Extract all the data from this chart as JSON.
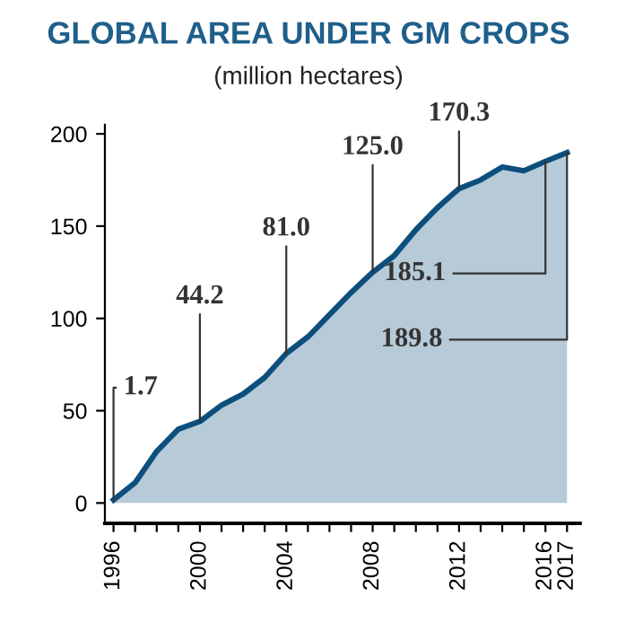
{
  "chart_data": {
    "type": "area",
    "title": "GLOBAL AREA UNDER GM CROPS",
    "subtitle": "(million hectares)",
    "x": [
      1996,
      1997,
      1998,
      1999,
      2000,
      2001,
      2002,
      2003,
      2004,
      2005,
      2006,
      2007,
      2008,
      2009,
      2010,
      2011,
      2012,
      2013,
      2014,
      2015,
      2016,
      2017
    ],
    "series": [
      {
        "color": "#0d4f7c",
        "values": [
          1.7,
          11,
          28,
          40,
          44.2,
          53,
          59,
          68,
          81.0,
          90,
          102,
          114,
          125.0,
          134,
          148,
          160,
          170.3,
          175,
          182,
          180,
          185.1,
          189.8
        ]
      }
    ],
    "xlim": [
      1995.6,
      2017.6
    ],
    "ylim": [
      -11,
      205
    ],
    "xticks": [
      1996,
      {
        "value": 1997,
        "label": null
      },
      {
        "value": 1998,
        "label": null
      },
      {
        "value": 1999,
        "label": null
      },
      2000,
      {
        "value": 2001,
        "label": null
      },
      {
        "value": 2002,
        "label": null
      },
      {
        "value": 2003,
        "label": null
      },
      2004,
      {
        "value": 2005,
        "label": null
      },
      {
        "value": 2006,
        "label": null
      },
      {
        "value": 2007,
        "label": null
      },
      2008,
      {
        "value": 2009,
        "label": null
      },
      {
        "value": 2010,
        "label": null
      },
      {
        "value": 2011,
        "label": null
      },
      2012,
      {
        "value": 2013,
        "label": null
      },
      {
        "value": 2014,
        "label": null
      },
      {
        "value": 2015,
        "label": null
      },
      2016,
      2017
    ],
    "yticks": [
      0,
      50,
      100,
      150,
      200
    ],
    "annotations": [
      {
        "text": "1.7",
        "x": 1996,
        "y": 1.7
      },
      {
        "text": "44.2",
        "x": 2000,
        "y": 44.2
      },
      {
        "text": "81.0",
        "x": 2004,
        "y": 81.0
      },
      {
        "text": "125.0",
        "x": 2008,
        "y": 125.0
      },
      {
        "text": "170.3",
        "x": 2012,
        "y": 170.3
      },
      {
        "text": "185.1",
        "x": 2016,
        "y": 185.1
      },
      {
        "text": "189.8",
        "x": 2017,
        "y": 189.8
      }
    ],
    "grid": false
  }
}
